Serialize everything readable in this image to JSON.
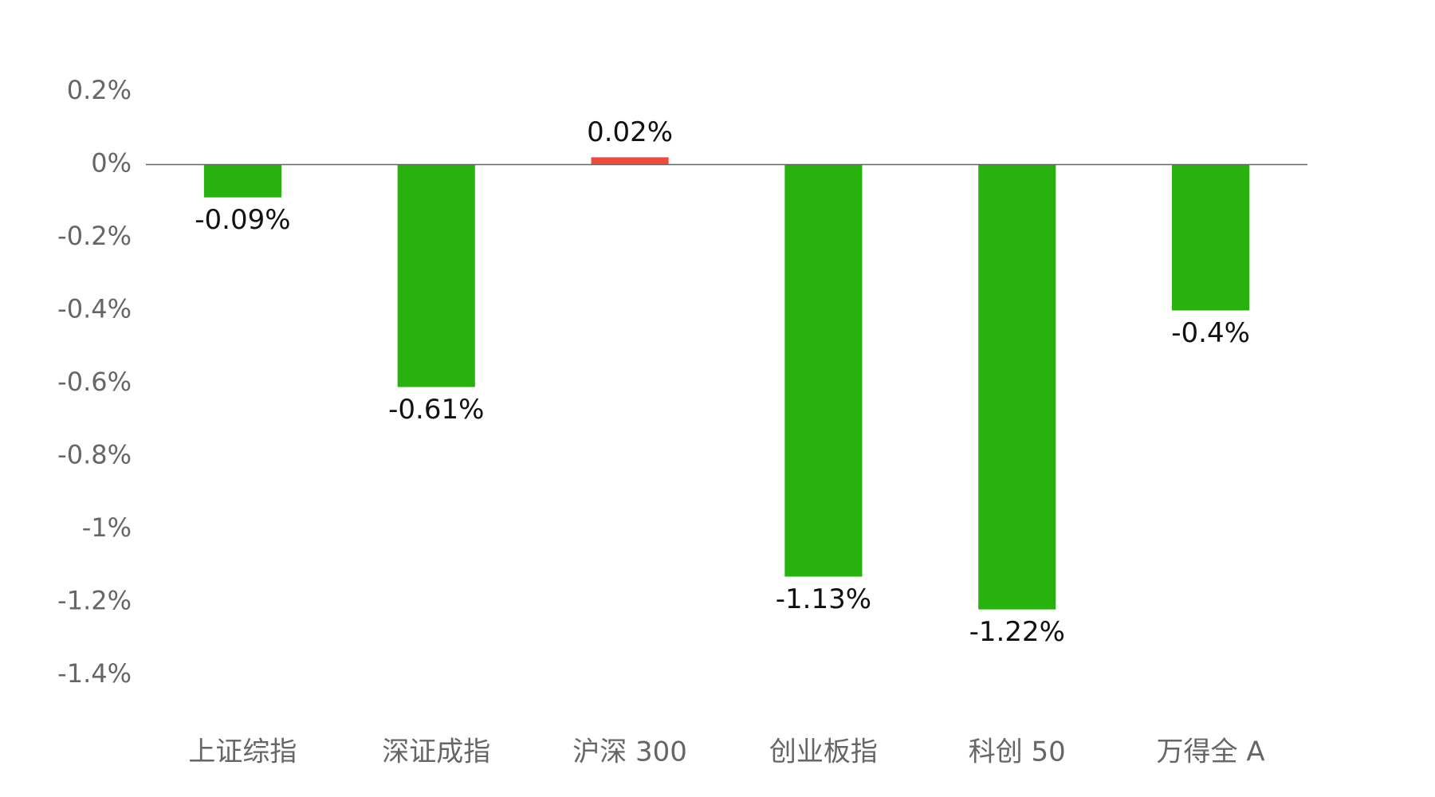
{
  "chart_data": {
    "type": "bar",
    "categories": [
      "上证综指",
      "深证成指",
      "沪深 300",
      "创业板指",
      "科创 50",
      "万得全 A"
    ],
    "values": [
      -0.09,
      -0.61,
      0.02,
      -1.13,
      -1.22,
      -0.4
    ],
    "value_labels": [
      "-0.09%",
      "-0.61%",
      "0.02%",
      "-1.13%",
      "-1.22%",
      "-0.4%"
    ],
    "colors": [
      "#28b20e",
      "#28b20e",
      "#f04b3a",
      "#28b20e",
      "#28b20e",
      "#28b20e"
    ],
    "ylim": [
      -1.4,
      0.2
    ],
    "yticks": [
      {
        "value": 0.2,
        "label": "0.2%"
      },
      {
        "value": 0,
        "label": "0%"
      },
      {
        "value": -0.2,
        "label": "-0.2%"
      },
      {
        "value": -0.4,
        "label": "-0.4%"
      },
      {
        "value": -0.6,
        "label": "-0.6%"
      },
      {
        "value": -0.8,
        "label": "-0.8%"
      },
      {
        "value": -1,
        "label": "-1%"
      },
      {
        "value": -1.2,
        "label": "-1.2%"
      },
      {
        "value": -1.4,
        "label": "-1.4%"
      }
    ],
    "grid": false
  }
}
